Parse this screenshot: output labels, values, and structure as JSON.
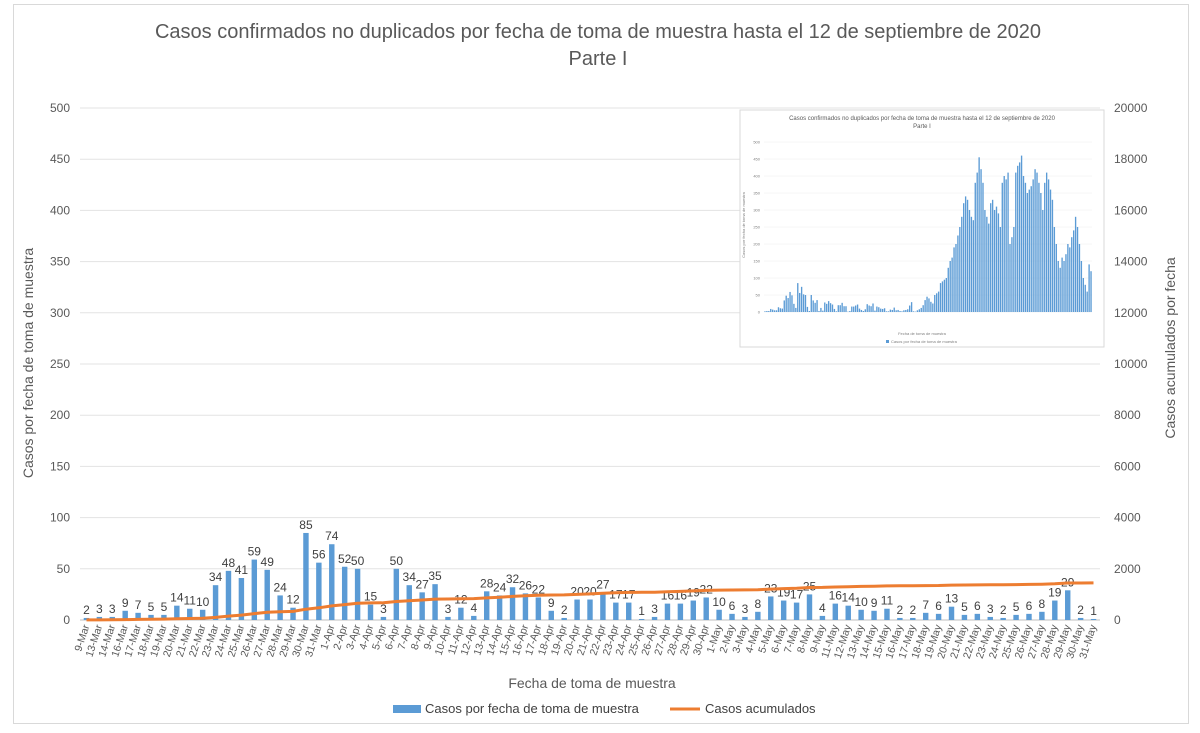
{
  "chart_data": {
    "type": "bar",
    "title_line1": "Casos confirmados no duplicados por fecha de toma de muestra hasta el 12 de septiembre de 2020",
    "title_line2": "Parte I",
    "xlabel": "Fecha de toma de muestra",
    "ylabel": "Casos por fecha de toma de muestra",
    "y2label": "Casos acumulados por fecha",
    "ylim": [
      0,
      500
    ],
    "y2lim": [
      0,
      20000
    ],
    "yticks": [
      "0",
      "50",
      "100",
      "150",
      "200",
      "250",
      "300",
      "350",
      "400",
      "450",
      "500"
    ],
    "y2ticks": [
      "0",
      "2000",
      "4000",
      "6000",
      "8000",
      "10000",
      "12000",
      "14000",
      "16000",
      "18000",
      "20000"
    ],
    "gridlines": true,
    "legend_position": "bottom",
    "colors": {
      "bar": "#5b9bd5",
      "line": "#ed7d31"
    },
    "categories": [
      "9-Mar",
      "13-Mar",
      "14-Mar",
      "16-Mar",
      "17-Mar",
      "18-Mar",
      "19-Mar",
      "20-Mar",
      "21-Mar",
      "22-Mar",
      "23-Mar",
      "24-Mar",
      "25-Mar",
      "26-Mar",
      "27-Mar",
      "28-Mar",
      "29-Mar",
      "30-Mar",
      "31-Mar",
      "1-Apr",
      "2-Apr",
      "3-Apr",
      "4-Apr",
      "5-Apr",
      "6-Apr",
      "7-Apr",
      "8-Apr",
      "9-Apr",
      "10-Apr",
      "11-Apr",
      "12-Apr",
      "13-Apr",
      "14-Apr",
      "15-Apr",
      "16-Apr",
      "17-Apr",
      "18-Apr",
      "19-Apr",
      "20-Apr",
      "21-Apr",
      "22-Apr",
      "23-Apr",
      "24-Apr",
      "25-Apr",
      "26-Apr",
      "27-Apr",
      "28-Apr",
      "29-Apr",
      "30-Apr",
      "1-May",
      "2-May",
      "3-May",
      "4-May",
      "5-May",
      "6-May",
      "7-May",
      "8-May",
      "9-May",
      "11-May",
      "12-May",
      "13-May",
      "14-May",
      "15-May",
      "16-May",
      "17-May",
      "18-May",
      "19-May",
      "20-May",
      "21-May",
      "22-May",
      "23-May",
      "24-May",
      "25-May",
      "26-May",
      "27-May",
      "28-May",
      "29-May",
      "30-May",
      "31-May"
    ],
    "series": [
      {
        "name": "Casos por fecha de toma de muestra",
        "type": "bar",
        "axis": "left",
        "values": [
          2,
          3,
          3,
          9,
          7,
          5,
          5,
          14,
          11,
          10,
          34,
          48,
          41,
          59,
          49,
          24,
          12,
          85,
          56,
          74,
          52,
          50,
          15,
          3,
          50,
          34,
          27,
          35,
          3,
          12,
          4,
          28,
          24,
          32,
          26,
          22,
          9,
          2,
          20,
          20,
          27,
          17,
          17,
          1,
          3,
          16,
          16,
          19,
          22,
          10,
          6,
          3,
          8,
          23,
          19,
          17,
          25,
          4,
          16,
          14,
          10,
          9,
          11,
          2,
          2,
          7,
          6,
          13,
          5,
          6,
          3,
          2,
          5,
          6,
          8,
          19,
          29,
          2,
          1
        ]
      },
      {
        "name": "Casos acumulados",
        "type": "line",
        "axis": "right",
        "values": [
          2,
          5,
          8,
          17,
          24,
          29,
          34,
          48,
          59,
          69,
          103,
          151,
          192,
          251,
          300,
          324,
          336,
          421,
          477,
          551,
          603,
          653,
          668,
          671,
          721,
          755,
          782,
          817,
          820,
          832,
          836,
          864,
          888,
          920,
          946,
          968,
          977,
          979,
          999,
          1019,
          1046,
          1063,
          1080,
          1081,
          1084,
          1100,
          1116,
          1135,
          1157,
          1167,
          1173,
          1176,
          1184,
          1207,
          1226,
          1243,
          1268,
          1272,
          1288,
          1302,
          1312,
          1321,
          1332,
          1334,
          1336,
          1343,
          1349,
          1362,
          1367,
          1373,
          1376,
          1378,
          1383,
          1389,
          1397,
          1416,
          1445,
          1447,
          1448
        ]
      }
    ],
    "inset": {
      "title_line1": "Casos confirmados no duplicados por fecha de toma de muestra hasta el 12 de septiembre de 2020",
      "title_line2": "Parte I",
      "xlabel": "Fecha de toma de muestra",
      "ylabel": "Casos por fecha de toma de muestra",
      "legend": "Casos por fecha de toma de muestra",
      "yticks": [
        "0",
        "50",
        "100",
        "150",
        "200",
        "250",
        "300",
        "350",
        "400",
        "450",
        "500"
      ],
      "ylim": [
        0,
        500
      ],
      "values": [
        2,
        3,
        3,
        9,
        7,
        5,
        5,
        14,
        11,
        10,
        34,
        48,
        41,
        59,
        49,
        24,
        12,
        85,
        56,
        74,
        52,
        50,
        15,
        3,
        50,
        34,
        27,
        35,
        3,
        12,
        4,
        28,
        24,
        32,
        26,
        22,
        9,
        2,
        20,
        20,
        27,
        17,
        17,
        1,
        3,
        16,
        16,
        19,
        22,
        10,
        6,
        3,
        8,
        23,
        19,
        17,
        25,
        4,
        16,
        14,
        10,
        9,
        11,
        2,
        2,
        7,
        6,
        13,
        5,
        6,
        3,
        2,
        5,
        6,
        8,
        19,
        29,
        2,
        1,
        5,
        8,
        12,
        20,
        35,
        45,
        40,
        30,
        25,
        50,
        55,
        60,
        85,
        90,
        95,
        100,
        130,
        150,
        160,
        190,
        200,
        225,
        250,
        280,
        320,
        340,
        330,
        300,
        280,
        270,
        380,
        410,
        455,
        420,
        380,
        300,
        280,
        260,
        320,
        330,
        300,
        310,
        290,
        250,
        380,
        400,
        390,
        410,
        200,
        220,
        250,
        410,
        430,
        440,
        460,
        400,
        380,
        350,
        360,
        370,
        390,
        420,
        410,
        380,
        350,
        300,
        380,
        410,
        390,
        360,
        330,
        250,
        200,
        150,
        130,
        160,
        150,
        170,
        200,
        190,
        220,
        240,
        280,
        250,
        200,
        150,
        100,
        80,
        60,
        140,
        120
      ]
    }
  }
}
